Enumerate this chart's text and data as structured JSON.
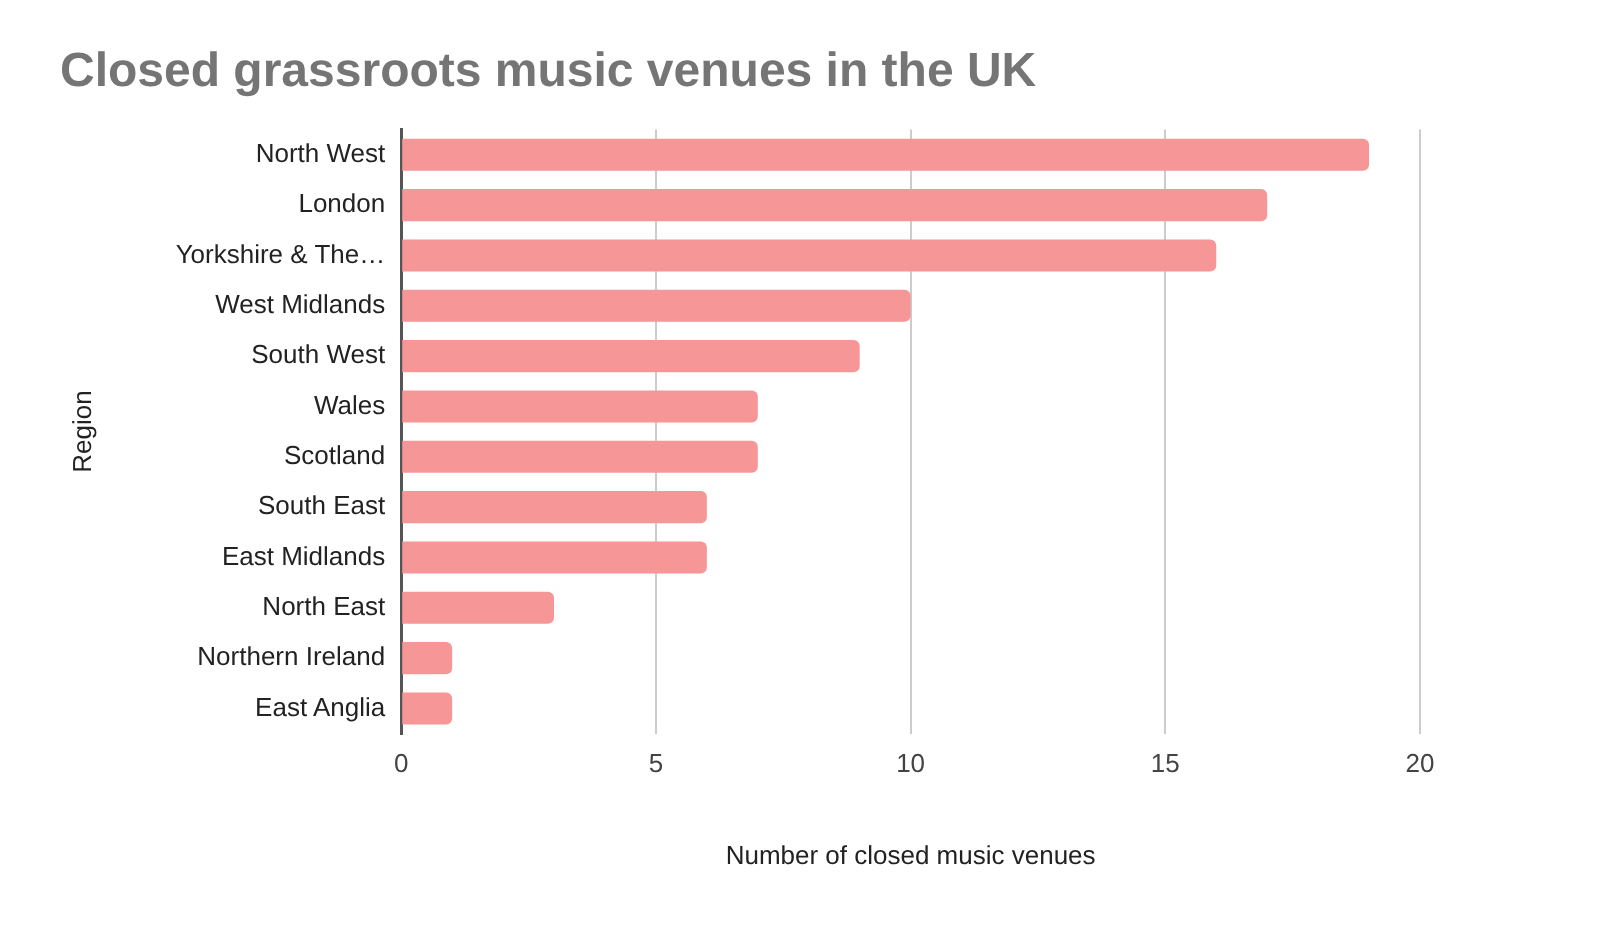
{
  "chart_data": {
    "type": "bar",
    "orientation": "horizontal",
    "title": "Closed grassroots music venues in the UK",
    "xlabel": "Number of closed music venues",
    "ylabel": "Region",
    "categories": [
      "North West",
      "London",
      "Yorkshire & The…",
      "West Midlands",
      "South West",
      "Wales",
      "Scotland",
      "South East",
      "East Midlands",
      "North East",
      "Northern Ireland",
      "East Anglia"
    ],
    "values": [
      19,
      17,
      16,
      10,
      9,
      7,
      7,
      6,
      6,
      3,
      1,
      1
    ],
    "color": "#f69697",
    "xlim": [
      0,
      20
    ],
    "xticks": [
      0,
      5,
      10,
      15,
      20
    ],
    "grid": "x",
    "legend": false
  }
}
